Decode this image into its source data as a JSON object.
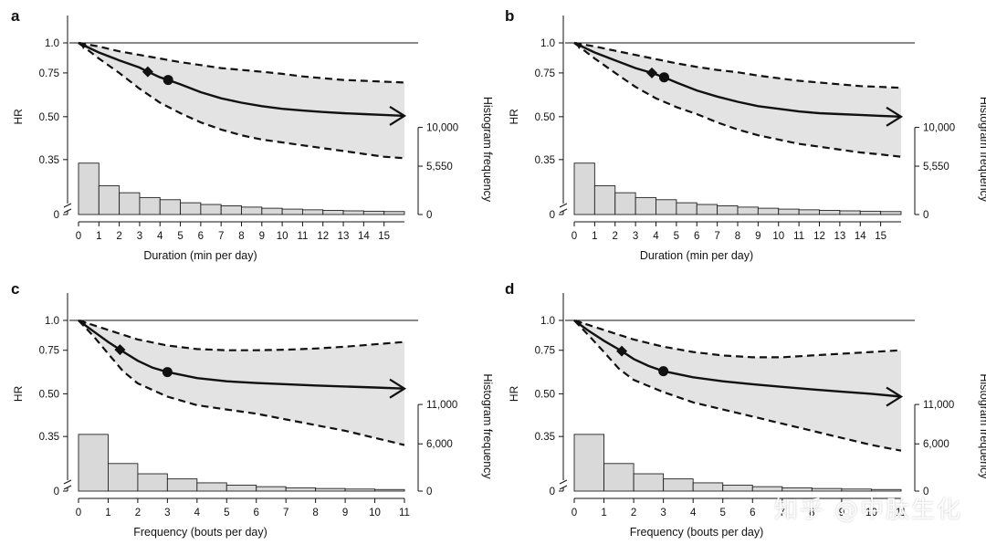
{
  "chart_data": [
    {
      "panel": "a",
      "type": "line",
      "title": "",
      "xlabel": "Duration (min per day)",
      "ylabel": "HR",
      "y2label": "Histogram frequency",
      "x_ticks": [
        0,
        1,
        2,
        3,
        4,
        5,
        6,
        7,
        8,
        9,
        10,
        11,
        12,
        13,
        14,
        15
      ],
      "xlim": [
        0,
        16
      ],
      "hr_ticks": [
        1.0,
        0.75,
        0.5,
        0.35,
        0
      ],
      "hr_tick_labels": [
        "1.0",
        "0.75",
        "0.50",
        "0.35",
        "0"
      ],
      "hist_ticks": [
        0,
        5550,
        10000
      ],
      "hist_tick_labels": [
        "0",
        "5,550",
        "10,000"
      ],
      "hist_max": 10000,
      "hr_curve": {
        "x": [
          0,
          1,
          2,
          3,
          3.4,
          4,
          4.4,
          5,
          6,
          7,
          8,
          9,
          10,
          11,
          12,
          13,
          14,
          15,
          16
        ],
        "y": [
          1.0,
          0.92,
          0.855,
          0.795,
          0.76,
          0.725,
          0.71,
          0.685,
          0.64,
          0.605,
          0.58,
          0.56,
          0.545,
          0.535,
          0.527,
          0.52,
          0.515,
          0.51,
          0.505
        ]
      },
      "ci_lower": {
        "x": [
          0,
          1,
          2,
          3,
          4,
          5,
          6,
          7,
          8,
          9,
          10,
          11,
          12,
          13,
          14,
          15,
          16
        ],
        "y": [
          1.0,
          0.87,
          0.75,
          0.66,
          0.58,
          0.52,
          0.48,
          0.455,
          0.435,
          0.42,
          0.41,
          0.4,
          0.39,
          0.38,
          0.37,
          0.36,
          0.355
        ]
      },
      "ci_upper": {
        "x": [
          0,
          1,
          2,
          3,
          4,
          5,
          6,
          7,
          8,
          9,
          10,
          11,
          12,
          13,
          14,
          15,
          16
        ],
        "y": [
          1.0,
          0.97,
          0.93,
          0.9,
          0.87,
          0.84,
          0.815,
          0.79,
          0.775,
          0.76,
          0.745,
          0.73,
          0.72,
          0.71,
          0.705,
          0.7,
          0.695
        ]
      },
      "diamond_marker": {
        "x": 3.4,
        "y": 0.76
      },
      "circle_marker": {
        "x": 4.4,
        "y": 0.71
      },
      "histogram": {
        "bins": [
          0,
          1,
          2,
          3,
          4,
          5,
          6,
          7,
          8,
          9,
          10,
          11,
          12,
          13,
          14,
          15,
          16
        ],
        "counts": [
          5900,
          3300,
          2500,
          1950,
          1700,
          1350,
          1150,
          1000,
          850,
          720,
          620,
          540,
          470,
          420,
          380,
          340
        ]
      }
    },
    {
      "panel": "b",
      "type": "line",
      "title": "",
      "xlabel": "Duration (min per day)",
      "ylabel": "HR",
      "y2label": "Histogram frequency",
      "x_ticks": [
        0,
        1,
        2,
        3,
        4,
        5,
        6,
        7,
        8,
        9,
        10,
        11,
        12,
        13,
        14,
        15
      ],
      "xlim": [
        0,
        16
      ],
      "hr_ticks": [
        1.0,
        0.75,
        0.5,
        0.35,
        0
      ],
      "hr_tick_labels": [
        "1.0",
        "0.75",
        "0.50",
        "0.35",
        "0"
      ],
      "hist_ticks": [
        0,
        5550,
        10000
      ],
      "hist_tick_labels": [
        "0",
        "5,550",
        "10,000"
      ],
      "hist_max": 10000,
      "hr_curve": {
        "x": [
          0,
          1,
          2,
          3,
          3.8,
          4.4,
          5,
          6,
          7,
          8,
          9,
          10,
          11,
          12,
          13,
          14,
          15,
          16
        ],
        "y": [
          1.0,
          0.92,
          0.855,
          0.79,
          0.75,
          0.725,
          0.695,
          0.65,
          0.615,
          0.585,
          0.56,
          0.545,
          0.53,
          0.52,
          0.515,
          0.51,
          0.505,
          0.5
        ]
      },
      "ci_lower": {
        "x": [
          0,
          1,
          2,
          3,
          4,
          5,
          6,
          7,
          8,
          9,
          10,
          11,
          12,
          13,
          14,
          15,
          16
        ],
        "y": [
          1.0,
          0.87,
          0.75,
          0.67,
          0.605,
          0.555,
          0.515,
          0.48,
          0.455,
          0.435,
          0.42,
          0.405,
          0.395,
          0.385,
          0.375,
          0.368,
          0.36
        ]
      },
      "ci_upper": {
        "x": [
          0,
          1,
          2,
          3,
          4,
          5,
          6,
          7,
          8,
          9,
          10,
          11,
          12,
          13,
          14,
          15,
          16
        ],
        "y": [
          1.0,
          0.97,
          0.935,
          0.9,
          0.865,
          0.83,
          0.8,
          0.775,
          0.755,
          0.735,
          0.72,
          0.705,
          0.695,
          0.685,
          0.675,
          0.67,
          0.665
        ]
      },
      "diamond_marker": {
        "x": 3.8,
        "y": 0.75
      },
      "circle_marker": {
        "x": 4.4,
        "y": 0.725
      },
      "histogram": {
        "bins": [
          0,
          1,
          2,
          3,
          4,
          5,
          6,
          7,
          8,
          9,
          10,
          11,
          12,
          13,
          14,
          15,
          16
        ],
        "counts": [
          5900,
          3300,
          2500,
          1950,
          1700,
          1350,
          1150,
          1000,
          850,
          720,
          620,
          540,
          470,
          420,
          380,
          340
        ]
      }
    },
    {
      "panel": "c",
      "type": "line",
      "title": "",
      "xlabel": "Frequency (bouts per day)",
      "ylabel": "HR",
      "y2label": "Histogram frequency",
      "x_ticks": [
        0,
        1,
        2,
        3,
        4,
        5,
        6,
        7,
        8,
        9,
        10,
        11
      ],
      "xlim": [
        0,
        11
      ],
      "hr_ticks": [
        1.0,
        0.75,
        0.5,
        0.35,
        0
      ],
      "hr_tick_labels": [
        "1.0",
        "0.75",
        "0.50",
        "0.35",
        "0"
      ],
      "hist_ticks": [
        0,
        6000,
        11000
      ],
      "hist_tick_labels": [
        "0",
        "6,000",
        "11,000"
      ],
      "hist_max": 11000,
      "hr_curve": {
        "x": [
          0,
          0.5,
          1,
          1.4,
          2,
          2.5,
          3,
          4,
          5,
          6,
          7,
          8,
          9,
          10,
          11
        ],
        "y": [
          1.0,
          0.91,
          0.82,
          0.755,
          0.69,
          0.65,
          0.625,
          0.59,
          0.572,
          0.562,
          0.555,
          0.548,
          0.542,
          0.536,
          0.53
        ]
      },
      "ci_lower": {
        "x": [
          0,
          0.5,
          1,
          1.5,
          2,
          3,
          4,
          5,
          6,
          7,
          8,
          9,
          10,
          11
        ],
        "y": [
          1.0,
          0.87,
          0.73,
          0.63,
          0.56,
          0.49,
          0.46,
          0.445,
          0.43,
          0.41,
          0.39,
          0.37,
          0.345,
          0.32
        ]
      },
      "ci_upper": {
        "x": [
          0,
          0.5,
          1,
          1.5,
          2,
          3,
          4,
          5,
          6,
          7,
          8,
          9,
          10,
          11
        ],
        "y": [
          1.0,
          0.96,
          0.92,
          0.88,
          0.84,
          0.79,
          0.76,
          0.75,
          0.75,
          0.755,
          0.765,
          0.78,
          0.8,
          0.82
        ]
      },
      "diamond_marker": {
        "x": 1.4,
        "y": 0.755
      },
      "circle_marker": {
        "x": 3.0,
        "y": 0.625
      },
      "histogram": {
        "bins": [
          0,
          1,
          2,
          3,
          4,
          5,
          6,
          7,
          8,
          9,
          10,
          11
        ],
        "counts": [
          7200,
          3500,
          2200,
          1550,
          1050,
          750,
          560,
          420,
          330,
          260,
          200
        ]
      }
    },
    {
      "panel": "d",
      "type": "line",
      "title": "",
      "xlabel": "Frequency (bouts per day)",
      "ylabel": "HR",
      "y2label": "Histogram frequency",
      "x_ticks": [
        0,
        1,
        2,
        3,
        4,
        5,
        6,
        7,
        8,
        9,
        10,
        11
      ],
      "xlim": [
        0,
        11
      ],
      "hr_ticks": [
        1.0,
        0.75,
        0.5,
        0.35,
        0
      ],
      "hr_tick_labels": [
        "1.0",
        "0.75",
        "0.50",
        "0.35",
        "0"
      ],
      "hist_ticks": [
        0,
        6000,
        11000
      ],
      "hist_tick_labels": [
        "0",
        "6,000",
        "11,000"
      ],
      "hist_max": 11000,
      "hr_curve": {
        "x": [
          0,
          0.5,
          1,
          1.6,
          2,
          2.5,
          3,
          4,
          5,
          6,
          7,
          8,
          9,
          10,
          11
        ],
        "y": [
          1.0,
          0.91,
          0.83,
          0.745,
          0.7,
          0.66,
          0.63,
          0.595,
          0.572,
          0.555,
          0.54,
          0.525,
          0.512,
          0.5,
          0.49
        ]
      },
      "ci_lower": {
        "x": [
          0,
          0.5,
          1,
          1.5,
          2,
          3,
          4,
          5,
          6,
          7,
          8,
          9,
          10,
          11
        ],
        "y": [
          1.0,
          0.87,
          0.74,
          0.645,
          0.58,
          0.51,
          0.47,
          0.445,
          0.42,
          0.395,
          0.37,
          0.345,
          0.32,
          0.3
        ]
      },
      "ci_upper": {
        "x": [
          0,
          0.5,
          1,
          1.5,
          2,
          3,
          4,
          5,
          6,
          7,
          8,
          9,
          10,
          11
        ],
        "y": [
          1.0,
          0.96,
          0.92,
          0.88,
          0.84,
          0.78,
          0.74,
          0.72,
          0.71,
          0.71,
          0.72,
          0.73,
          0.74,
          0.75
        ]
      },
      "diamond_marker": {
        "x": 1.6,
        "y": 0.745
      },
      "circle_marker": {
        "x": 3.0,
        "y": 0.63
      },
      "histogram": {
        "bins": [
          0,
          1,
          2,
          3,
          4,
          5,
          6,
          7,
          8,
          9,
          10,
          11
        ],
        "counts": [
          7200,
          3500,
          2200,
          1550,
          1050,
          750,
          560,
          420,
          330,
          260,
          200
        ]
      }
    }
  ],
  "watermark": "知乎 @中肽生化"
}
